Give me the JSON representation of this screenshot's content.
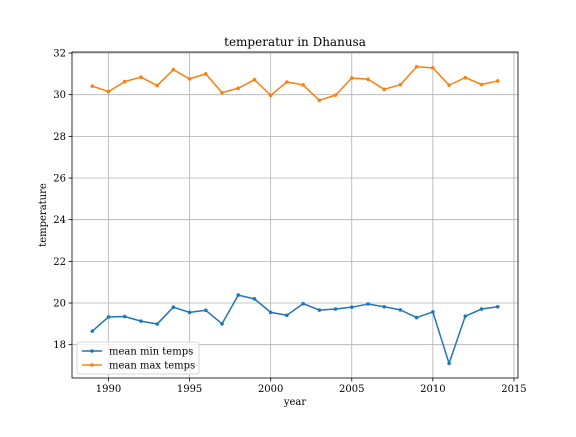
{
  "chart_data": {
    "type": "line",
    "title": "temperatur in Dhanusa",
    "xlabel": "year",
    "ylabel": "temperature",
    "xlim": [
      1987.75,
      2015.25
    ],
    "ylim": [
      16.4,
      32.05
    ],
    "x_ticks": [
      1990,
      1995,
      2000,
      2005,
      2010,
      2015
    ],
    "y_ticks": [
      18,
      20,
      22,
      24,
      26,
      28,
      30,
      32
    ],
    "grid": true,
    "legend_position": "lower-left",
    "x": [
      1989,
      1990,
      1991,
      1992,
      1993,
      1994,
      1995,
      1996,
      1997,
      1998,
      1999,
      2000,
      2001,
      2002,
      2003,
      2004,
      2005,
      2006,
      2007,
      2008,
      2009,
      2010,
      2011,
      2012,
      2013,
      2014
    ],
    "series": [
      {
        "name": "mean min temps",
        "color": "#1f77b4",
        "values": [
          18.65,
          19.33,
          19.35,
          19.13,
          18.99,
          19.8,
          19.55,
          19.65,
          19.0,
          20.38,
          20.2,
          19.55,
          19.41,
          19.97,
          19.66,
          19.71,
          19.8,
          19.95,
          19.82,
          19.67,
          19.3,
          19.57,
          17.1,
          19.37,
          19.71,
          19.82
        ]
      },
      {
        "name": "mean max temps",
        "color": "#ff7f0e",
        "values": [
          30.41,
          30.15,
          30.63,
          30.84,
          30.44,
          31.2,
          30.76,
          31.0,
          30.1,
          30.31,
          30.72,
          29.97,
          30.61,
          30.47,
          29.73,
          29.98,
          30.8,
          30.74,
          30.26,
          30.48,
          31.34,
          31.29,
          30.46,
          30.82,
          30.49,
          30.66
        ]
      }
    ]
  }
}
